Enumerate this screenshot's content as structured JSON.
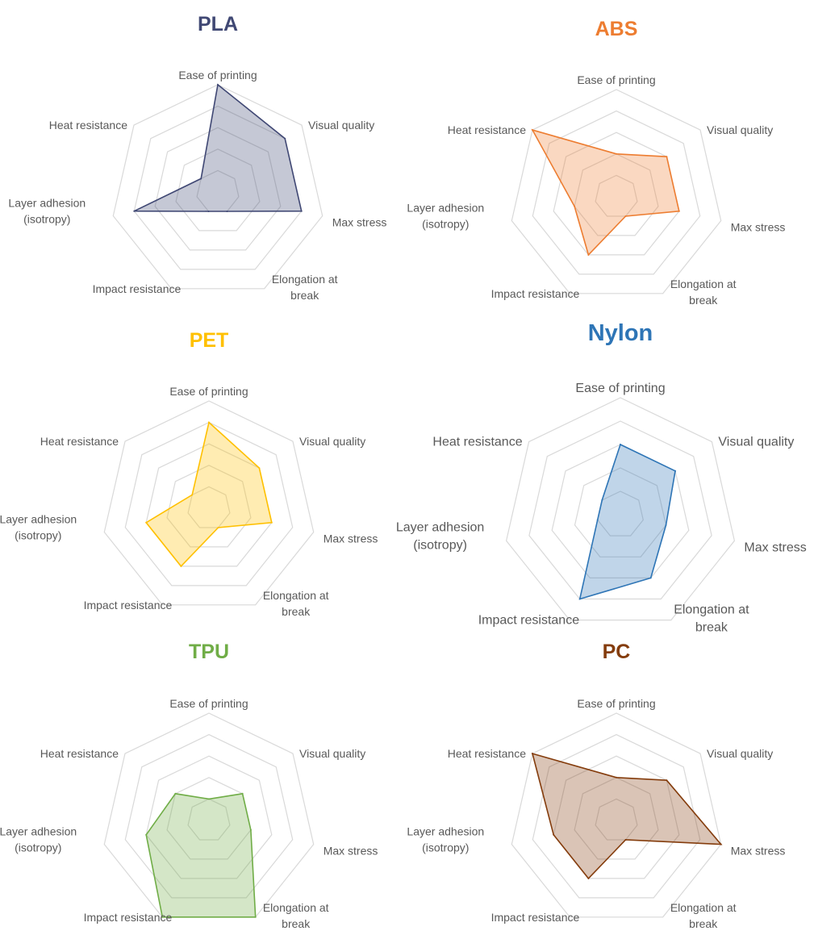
{
  "chart_data": [
    {
      "type": "radar",
      "title": "PLA",
      "color": "#404874",
      "axes": [
        "Ease of printing",
        "Visual quality",
        "Max stress",
        "Elongation at break",
        "Impact resistance",
        "Layer adhesion (isotropy)",
        "Heat resistance"
      ],
      "values": [
        5,
        4,
        4,
        1,
        1,
        4,
        1
      ],
      "rlim": [
        0,
        5
      ],
      "rings": 5,
      "legend": "none"
    },
    {
      "type": "radar",
      "title": "ABS",
      "color": "#ED7D31",
      "axes": [
        "Ease of printing",
        "Visual quality",
        "Max stress",
        "Elongation at break",
        "Impact resistance",
        "Layer adhesion (isotropy)",
        "Heat resistance"
      ],
      "values": [
        2,
        3,
        3,
        1,
        3,
        2,
        5
      ],
      "rlim": [
        0,
        5
      ],
      "rings": 5,
      "legend": "none"
    },
    {
      "type": "radar",
      "title": "PET",
      "color": "#FFC000",
      "axes": [
        "Ease of printing",
        "Visual quality",
        "Max stress",
        "Elongation at break",
        "Impact resistance",
        "Layer adhesion (isotropy)",
        "Heat resistance"
      ],
      "values": [
        4,
        3,
        3,
        1,
        3,
        3,
        1
      ],
      "rlim": [
        0,
        5
      ],
      "rings": 5,
      "legend": "none"
    },
    {
      "type": "radar",
      "title": "Nylon",
      "color": "#2E75B6",
      "axes": [
        "Ease of printing",
        "Visual quality",
        "Max stress",
        "Elongation at break",
        "Impact resistance",
        "Layer adhesion (isotropy)",
        "Heat resistance"
      ],
      "values": [
        3,
        3,
        2,
        3,
        4,
        1,
        1
      ],
      "rlim": [
        0,
        5
      ],
      "rings": 5,
      "legend": "none"
    },
    {
      "type": "radar",
      "title": "TPU",
      "color": "#70AD47",
      "axes": [
        "Ease of printing",
        "Visual quality",
        "Max stress",
        "Elongation at break",
        "Impact resistance",
        "Layer adhesion (isotropy)",
        "Heat resistance"
      ],
      "values": [
        1,
        2,
        2,
        5,
        5,
        3,
        2
      ],
      "rlim": [
        0,
        5
      ],
      "rings": 5,
      "legend": "none"
    },
    {
      "type": "radar",
      "title": "PC",
      "color": "#843C0C",
      "axes": [
        "Ease of printing",
        "Visual quality",
        "Max stress",
        "Elongation at break",
        "Impact resistance",
        "Layer adhesion (isotropy)",
        "Heat resistance"
      ],
      "values": [
        2,
        3,
        5,
        1,
        3,
        3,
        5
      ],
      "rlim": [
        0,
        5
      ],
      "rings": 5,
      "legend": "none"
    }
  ]
}
